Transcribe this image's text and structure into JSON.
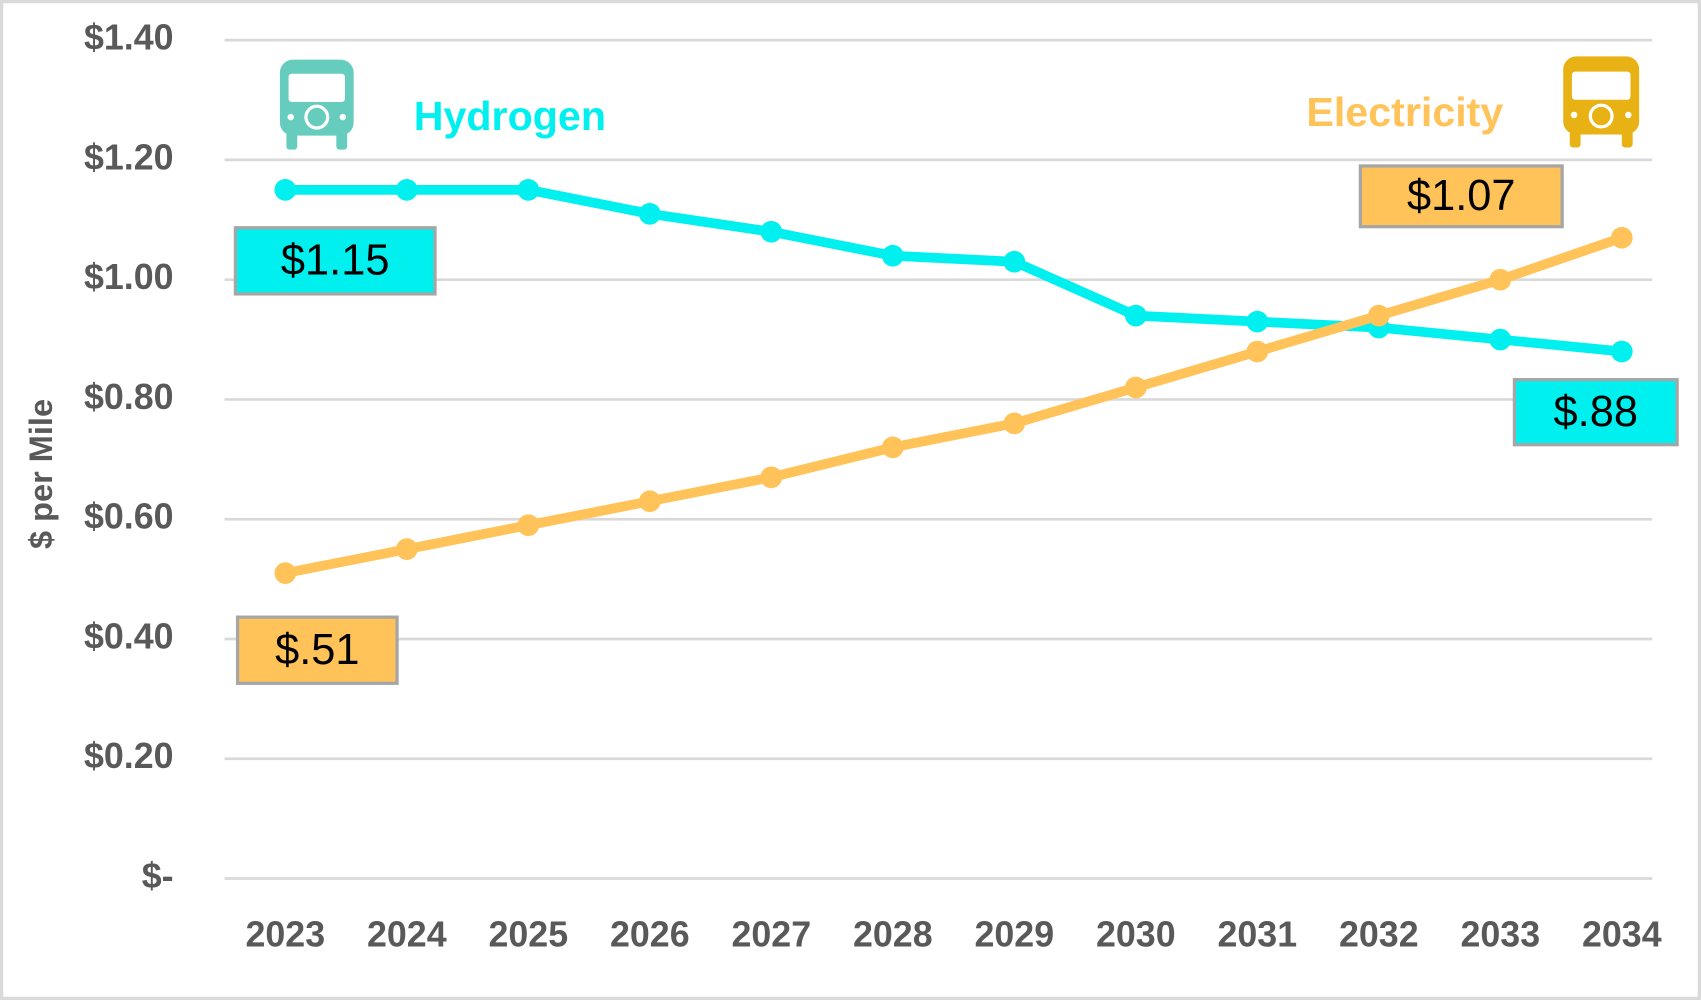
{
  "chart_data": {
    "type": "line",
    "y_label": "$ per Mile",
    "categories": [
      "2023",
      "2024",
      "2025",
      "2026",
      "2027",
      "2028",
      "2029",
      "2030",
      "2031",
      "2032",
      "2033",
      "2034"
    ],
    "series": [
      {
        "name": "Hydrogen",
        "color": "#00f0f0",
        "values": [
          1.15,
          1.15,
          1.15,
          1.11,
          1.08,
          1.04,
          1.03,
          0.94,
          0.93,
          0.92,
          0.9,
          0.88
        ],
        "value_labels": [
          "$1.15",
          null,
          null,
          null,
          null,
          null,
          null,
          null,
          null,
          null,
          null,
          "$.88"
        ]
      },
      {
        "name": "Electricity",
        "color": "#ffc35a",
        "values": [
          0.51,
          0.55,
          0.59,
          0.63,
          0.67,
          0.72,
          0.76,
          0.82,
          0.88,
          0.94,
          1.0,
          1.07
        ],
        "value_labels": [
          "$.51",
          null,
          null,
          null,
          null,
          null,
          null,
          null,
          null,
          null,
          null,
          "$1.07"
        ]
      }
    ],
    "ylim": [
      0,
      1.4
    ],
    "yticks": [
      {
        "value": 0,
        "label": "$-"
      },
      {
        "value": 0.2,
        "label": "$0.20"
      },
      {
        "value": 0.4,
        "label": "$0.40"
      },
      {
        "value": 0.6,
        "label": "$0.60"
      },
      {
        "value": 0.8,
        "label": "$0.80"
      },
      {
        "value": 1.0,
        "label": "$1.00"
      },
      {
        "value": 1.2,
        "label": "$1.20"
      },
      {
        "value": 1.4,
        "label": "$1.40"
      }
    ],
    "grid": true
  }
}
